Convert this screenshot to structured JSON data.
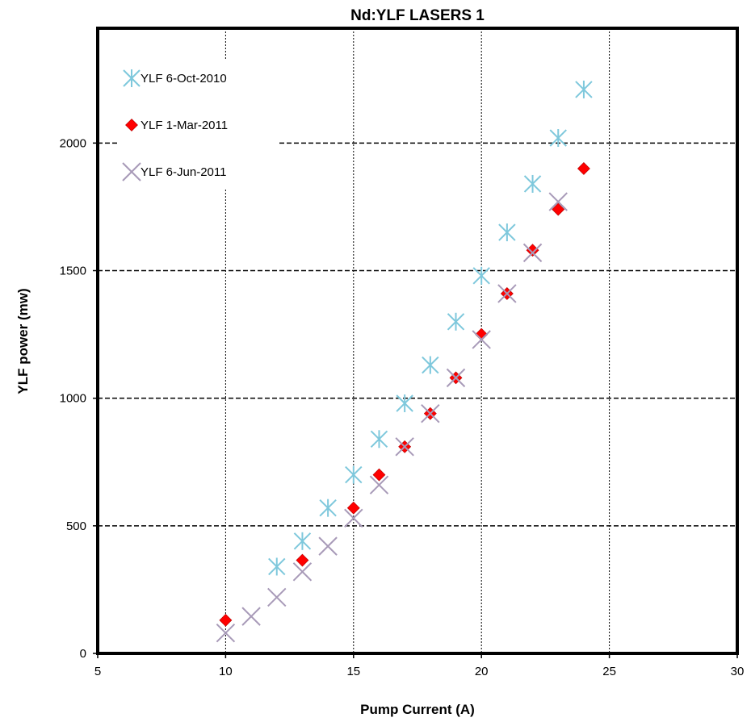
{
  "chart_data": {
    "type": "scatter",
    "title": "Nd:YLF LASERS 1",
    "xlabel": "Pump Current (A)",
    "ylabel": "YLF power (mw)",
    "xlim": [
      5,
      30
    ],
    "ylim": [
      0,
      2450
    ],
    "xticks": [
      5,
      10,
      15,
      20,
      25,
      30
    ],
    "yticks": [
      0,
      500,
      1000,
      1500,
      2000
    ],
    "grid": {
      "x": "dotted vertical",
      "y": "dashed horizontal"
    },
    "legend_position": "top-left",
    "series": [
      {
        "name": "YLF 6-Oct-2010",
        "marker": "asterisk",
        "color": "#7ec8dc",
        "points": [
          [
            12,
            340
          ],
          [
            13,
            440
          ],
          [
            14,
            570
          ],
          [
            15,
            700
          ],
          [
            16,
            840
          ],
          [
            17,
            980
          ],
          [
            18,
            1130
          ],
          [
            19,
            1300
          ],
          [
            20,
            1480
          ],
          [
            21,
            1650
          ],
          [
            22,
            1840
          ],
          [
            23,
            2020
          ],
          [
            24,
            2210
          ]
        ]
      },
      {
        "name": "YLF 1-Mar-2011",
        "marker": "diamond",
        "color": "#ff0000",
        "points": [
          [
            10,
            130
          ],
          [
            13,
            365
          ],
          [
            15,
            570
          ],
          [
            16,
            700
          ],
          [
            17,
            810
          ],
          [
            18,
            940
          ],
          [
            19,
            1080
          ],
          [
            20,
            1250
          ],
          [
            21,
            1410
          ],
          [
            22,
            1580
          ],
          [
            23,
            1740
          ],
          [
            24,
            1900
          ]
        ]
      },
      {
        "name": "YLF 6-Jun-2011",
        "marker": "x",
        "color": "#a89ab8",
        "points": [
          [
            10,
            80
          ],
          [
            11,
            145
          ],
          [
            12,
            220
          ],
          [
            13,
            320
          ],
          [
            14,
            420
          ],
          [
            15,
            530
          ],
          [
            16,
            660
          ],
          [
            17,
            810
          ],
          [
            18,
            940
          ],
          [
            19,
            1080
          ],
          [
            20,
            1230
          ],
          [
            21,
            1410
          ],
          [
            22,
            1570
          ],
          [
            23,
            1770
          ]
        ]
      }
    ]
  }
}
